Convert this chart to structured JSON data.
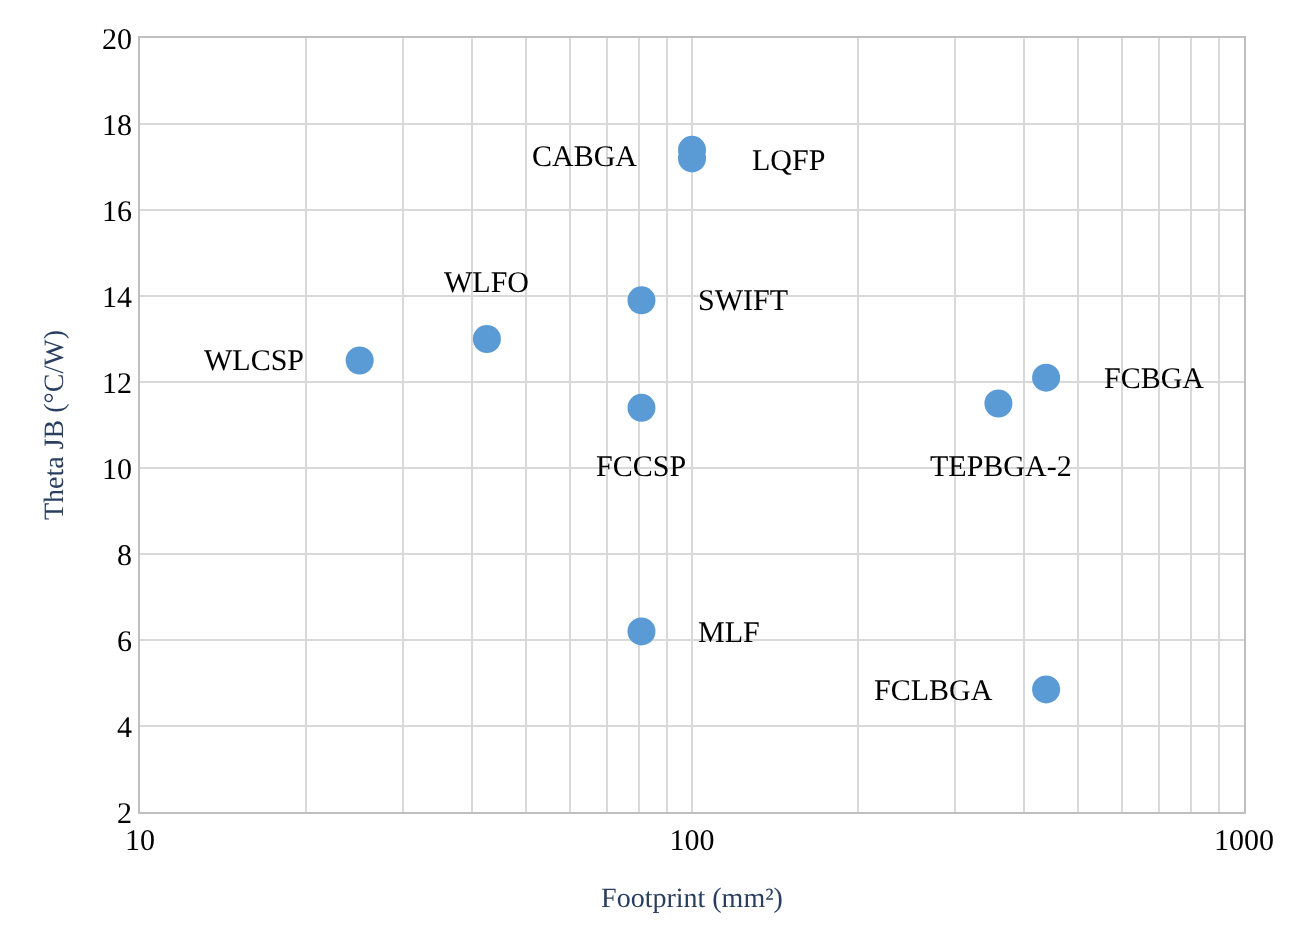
{
  "chart_data": {
    "type": "scatter",
    "xlabel": "Footprint (mm²)",
    "ylabel": "Theta JB (°C/W)",
    "log": "x",
    "xlim": [
      10,
      1000
    ],
    "xticks": [
      10,
      100,
      1000
    ],
    "ylim": [
      2,
      20
    ],
    "yticks": [
      2,
      4,
      6,
      8,
      10,
      12,
      14,
      16,
      18,
      20
    ],
    "grid": true,
    "marker": "circle",
    "series": [
      {
        "color": "#5b9bd5",
        "x": [
          100,
          100,
          42.5,
          81,
          25,
          438,
          81,
          359,
          81,
          438
        ],
        "values": [
          17.4,
          17.2,
          13.0,
          13.9,
          12.5,
          12.1,
          11.4,
          11.5,
          6.2,
          4.85
        ]
      }
    ],
    "annotations": [
      {
        "text": "CABGA",
        "x": 100,
        "y": 17.4
      },
      {
        "text": "LQFP",
        "x": 100,
        "y": 17.2
      },
      {
        "text": "WLFO",
        "x": 42.5,
        "y": 13.0
      },
      {
        "text": "SWIFT",
        "x": 81,
        "y": 13.9
      },
      {
        "text": "WLCSP",
        "x": 25,
        "y": 12.5
      },
      {
        "text": "FCBGA",
        "x": 438,
        "y": 12.1
      },
      {
        "text": "FCCSP",
        "x": 81,
        "y": 11.4
      },
      {
        "text": "TEPBGA-2",
        "x": 359,
        "y": 11.5
      },
      {
        "text": "MLF",
        "x": 81,
        "y": 6.2
      },
      {
        "text": "FCLBGA",
        "x": 438,
        "y": 4.85
      }
    ]
  }
}
